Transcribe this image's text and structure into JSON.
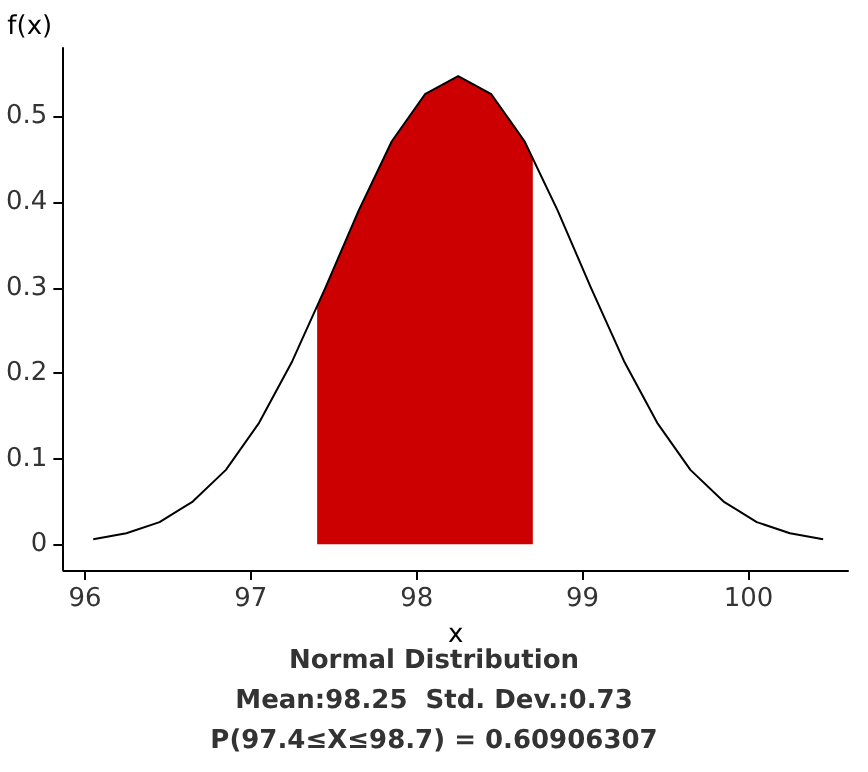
{
  "chart_data": {
    "type": "line",
    "title": "Normal Distribution",
    "xlabel": "x",
    "ylabel": "f(x)",
    "annotations": [
      "Mean:98.25  Std. Dev.:0.73",
      "P(97.4≤X≤98.7) = 0.60906307"
    ],
    "series": [
      {
        "type": "area",
        "color": "#cc0000",
        "x": [
          97.4,
          97.45,
          97.65,
          97.85,
          98.05,
          98.25,
          98.45,
          98.65,
          98.7
        ],
        "values": [
          0.278,
          0.3,
          0.39,
          0.471,
          0.526,
          0.547,
          0.526,
          0.471,
          0.452
        ]
      },
      {
        "color": "#000000",
        "x": [
          96.05,
          96.25,
          96.45,
          96.65,
          96.85,
          97.05,
          97.25,
          97.45,
          97.65,
          97.85,
          98.05,
          98.25,
          98.45,
          98.65,
          98.85,
          99.05,
          99.25,
          99.45,
          99.65,
          99.85,
          100.05,
          100.25,
          100.45
        ],
        "values": [
          0.006,
          0.013,
          0.026,
          0.05,
          0.087,
          0.142,
          0.214,
          0.3,
          0.39,
          0.471,
          0.526,
          0.547,
          0.526,
          0.471,
          0.39,
          0.3,
          0.214,
          0.142,
          0.087,
          0.05,
          0.026,
          0.013,
          0.006
        ]
      }
    ],
    "xlim": [
      95.87,
      100.6
    ],
    "xticks": [
      96,
      97,
      98,
      99,
      100
    ],
    "ylim": [
      -0.03,
      0.58
    ],
    "yticks": [
      0,
      0.1,
      0.2,
      0.3,
      0.4,
      0.5
    ],
    "grid": false,
    "marker": "none",
    "line_style": "solid"
  }
}
